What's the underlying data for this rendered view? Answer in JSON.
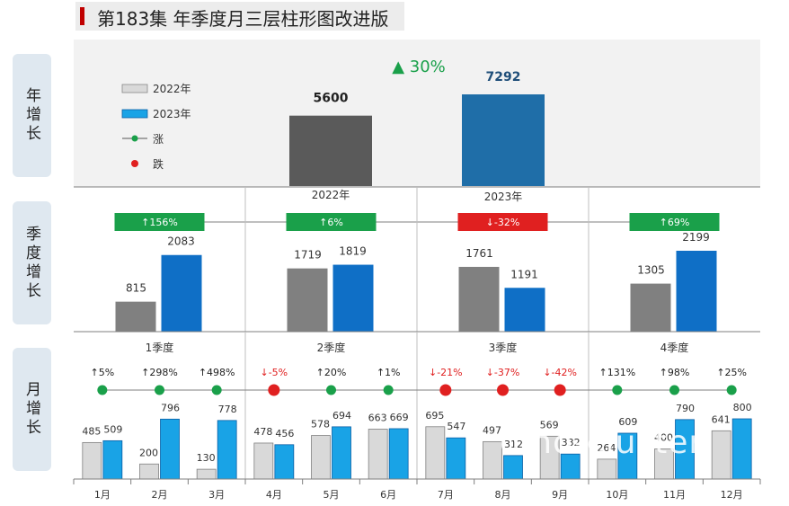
{
  "title": "第183集 年季度月三层柱形图改进版",
  "side_labels": {
    "year": "年增长",
    "quarter": "季度增长",
    "month": "月增长"
  },
  "colors": {
    "y2022": "#5a5a5a",
    "y2023": "#1f6ea8",
    "q2022": "#808080",
    "q2023": "#0f6fc6",
    "m2022": "#d9d9d9",
    "m2023": "#19a3e6",
    "up": "#1aa04a",
    "down": "#e02020"
  },
  "legend": {
    "items": [
      "2022年",
      "2023年",
      "涨",
      "跌"
    ]
  },
  "watermark": "omo-cluster",
  "chart_data": [
    {
      "type": "bar",
      "level": "year",
      "categories": [
        "2022年",
        "2023年"
      ],
      "values": [
        5600,
        7292
      ],
      "change": "▲ 30%"
    },
    {
      "type": "bar",
      "level": "quarter",
      "categories": [
        "1",
        "2",
        "3",
        "4"
      ],
      "series": [
        {
          "name": "2022年",
          "values": [
            815,
            1719,
            1761,
            1305
          ]
        },
        {
          "name": "2023年",
          "values": [
            2083,
            1819,
            1191,
            2199
          ]
        }
      ],
      "changes": [
        "↑156%",
        "↑6%",
        "↓-32%",
        "↑69%"
      ],
      "direction": [
        "up",
        "up",
        "down",
        "up"
      ]
    },
    {
      "type": "bar",
      "level": "month",
      "categories": [
        "1月",
        "2月",
        "3月",
        "4月",
        "5月",
        "6月",
        "7月",
        "8月",
        "9月",
        "10月",
        "11月",
        "12月"
      ],
      "groups": [
        "1季度",
        "2季度",
        "3季度",
        "4季度"
      ],
      "series": [
        {
          "name": "2022年",
          "values": [
            485,
            200,
            130,
            478,
            578,
            663,
            695,
            497,
            569,
            264,
            400,
            641
          ]
        },
        {
          "name": "2023年",
          "values": [
            509,
            796,
            778,
            456,
            694,
            669,
            547,
            312,
            332,
            609,
            790,
            800
          ]
        }
      ],
      "changes": [
        "↑5%",
        "↑298%",
        "↑498%",
        "↓-5%",
        "↑20%",
        "↑1%",
        "↓-21%",
        "↓-37%",
        "↓-42%",
        "↑131%",
        "↑98%",
        "↑25%"
      ],
      "direction": [
        "up",
        "up",
        "up",
        "down",
        "up",
        "up",
        "down",
        "down",
        "down",
        "up",
        "up",
        "up"
      ]
    }
  ]
}
